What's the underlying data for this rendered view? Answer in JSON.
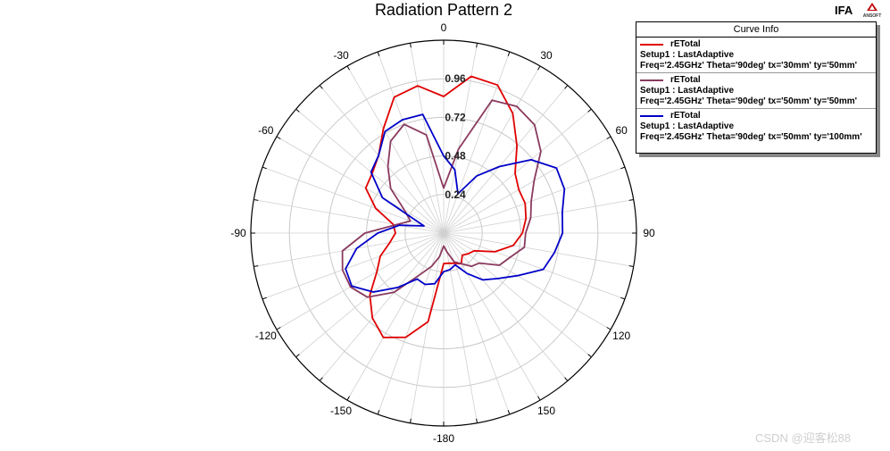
{
  "chart_data": {
    "type": "polar-line",
    "title": "Radiation Pattern 2",
    "angle_ticks": [
      0,
      30,
      60,
      90,
      120,
      150,
      -180,
      -150,
      -120,
      -90,
      -60,
      -30
    ],
    "angle_tick_labels": [
      "0",
      "30",
      "60",
      "90",
      "120",
      "150",
      "-180",
      "-150",
      "-120",
      "-90",
      "-60",
      "-30"
    ],
    "radial_range": [
      0,
      1.2
    ],
    "radial_ticks": [
      0.24,
      0.48,
      0.72,
      0.96
    ],
    "radial_tick_labels": [
      "0.24",
      "0.48",
      "0.72",
      "0.96"
    ],
    "grid": true,
    "legend": {
      "title": "Curve Info",
      "placement": "top-right"
    },
    "series": [
      {
        "name": "rETotal",
        "setup": "Setup1 : LastAdaptive",
        "params": "Freq='2.45GHz' Theta='90deg' tx='30mm' ty='50mm'",
        "color": "#e00000",
        "points": [
          [
            0,
            0.85
          ],
          [
            10,
            0.99
          ],
          [
            20,
            0.98
          ],
          [
            30,
            0.86
          ],
          [
            40,
            0.71
          ],
          [
            50,
            0.58
          ],
          [
            60,
            0.54
          ],
          [
            70,
            0.54
          ],
          [
            80,
            0.52
          ],
          [
            90,
            0.49
          ],
          [
            100,
            0.44
          ],
          [
            110,
            0.34
          ],
          [
            120,
            0.22
          ],
          [
            130,
            0.2
          ],
          [
            140,
            0.18
          ],
          [
            150,
            0.22
          ],
          [
            160,
            0.2
          ],
          [
            170,
            0.19
          ],
          [
            180,
            0.19
          ],
          [
            -170,
            0.56
          ],
          [
            -160,
            0.69
          ],
          [
            -150,
            0.75
          ],
          [
            -140,
            0.69
          ],
          [
            -130,
            0.6
          ],
          [
            -120,
            0.48
          ],
          [
            -110,
            0.42
          ],
          [
            -100,
            0.34
          ],
          [
            -90,
            0.3
          ],
          [
            -80,
            0.32
          ],
          [
            -70,
            0.45
          ],
          [
            -60,
            0.56
          ],
          [
            -50,
            0.58
          ],
          [
            -40,
            0.63
          ],
          [
            -30,
            0.75
          ],
          [
            -20,
            0.9
          ],
          [
            -10,
            0.93
          ]
        ]
      },
      {
        "name": "rETotal",
        "setup": "Setup1 : LastAdaptive",
        "params": "Freq='2.45GHz' Theta='90deg' tx='50mm' ty='50mm'",
        "color": "#8a3a5e",
        "points": [
          [
            0,
            0.28
          ],
          [
            10,
            0.53
          ],
          [
            20,
            0.88
          ],
          [
            30,
            0.91
          ],
          [
            40,
            0.88
          ],
          [
            50,
            0.79
          ],
          [
            60,
            0.65
          ],
          [
            70,
            0.58
          ],
          [
            80,
            0.55
          ],
          [
            90,
            0.51
          ],
          [
            100,
            0.51
          ],
          [
            110,
            0.44
          ],
          [
            120,
            0.4
          ],
          [
            130,
            0.29
          ],
          [
            140,
            0.27
          ],
          [
            150,
            0.22
          ],
          [
            160,
            0.19
          ],
          [
            170,
            0.12
          ],
          [
            180,
            0.08
          ],
          [
            -170,
            0.15
          ],
          [
            -160,
            0.22
          ],
          [
            -150,
            0.3
          ],
          [
            -140,
            0.48
          ],
          [
            -130,
            0.62
          ],
          [
            -120,
            0.67
          ],
          [
            -110,
            0.67
          ],
          [
            -100,
            0.64
          ],
          [
            -90,
            0.49
          ],
          [
            -80,
            0.3
          ],
          [
            -70,
            0.22
          ],
          [
            -60,
            0.28
          ],
          [
            -50,
            0.43
          ],
          [
            -40,
            0.54
          ],
          [
            -30,
            0.66
          ],
          [
            -20,
            0.72
          ],
          [
            -10,
            0.62
          ]
        ]
      },
      {
        "name": "rETotal",
        "setup": "Setup1 : LastAdaptive",
        "params": "Freq='2.45GHz' Theta='90deg' tx='50mm' ty='100mm'",
        "color": "#0000c8",
        "points": [
          [
            0,
            0.48
          ],
          [
            10,
            0.4
          ],
          [
            20,
            0.26
          ],
          [
            30,
            0.41
          ],
          [
            40,
            0.54
          ],
          [
            50,
            0.71
          ],
          [
            60,
            0.81
          ],
          [
            70,
            0.8
          ],
          [
            80,
            0.75
          ],
          [
            90,
            0.74
          ],
          [
            100,
            0.7
          ],
          [
            110,
            0.66
          ],
          [
            120,
            0.53
          ],
          [
            130,
            0.44
          ],
          [
            140,
            0.38
          ],
          [
            150,
            0.29
          ],
          [
            160,
            0.21
          ],
          [
            170,
            0.23
          ],
          [
            180,
            0.24
          ],
          [
            -170,
            0.32
          ],
          [
            -160,
            0.34
          ],
          [
            -150,
            0.33
          ],
          [
            -140,
            0.44
          ],
          [
            -130,
            0.57
          ],
          [
            -120,
            0.66
          ],
          [
            -110,
            0.65
          ],
          [
            -100,
            0.55
          ],
          [
            -90,
            0.41
          ],
          [
            -80,
            0.28
          ],
          [
            -70,
            0.13
          ],
          [
            -60,
            0.44
          ],
          [
            -50,
            0.59
          ],
          [
            -40,
            0.63
          ],
          [
            -30,
            0.73
          ],
          [
            -20,
            0.75
          ],
          [
            -10,
            0.75
          ]
        ]
      }
    ]
  },
  "header": {
    "project_name": "IFA",
    "logo_text": "ANSOFT"
  },
  "watermark": "CSDN @迎客松88"
}
